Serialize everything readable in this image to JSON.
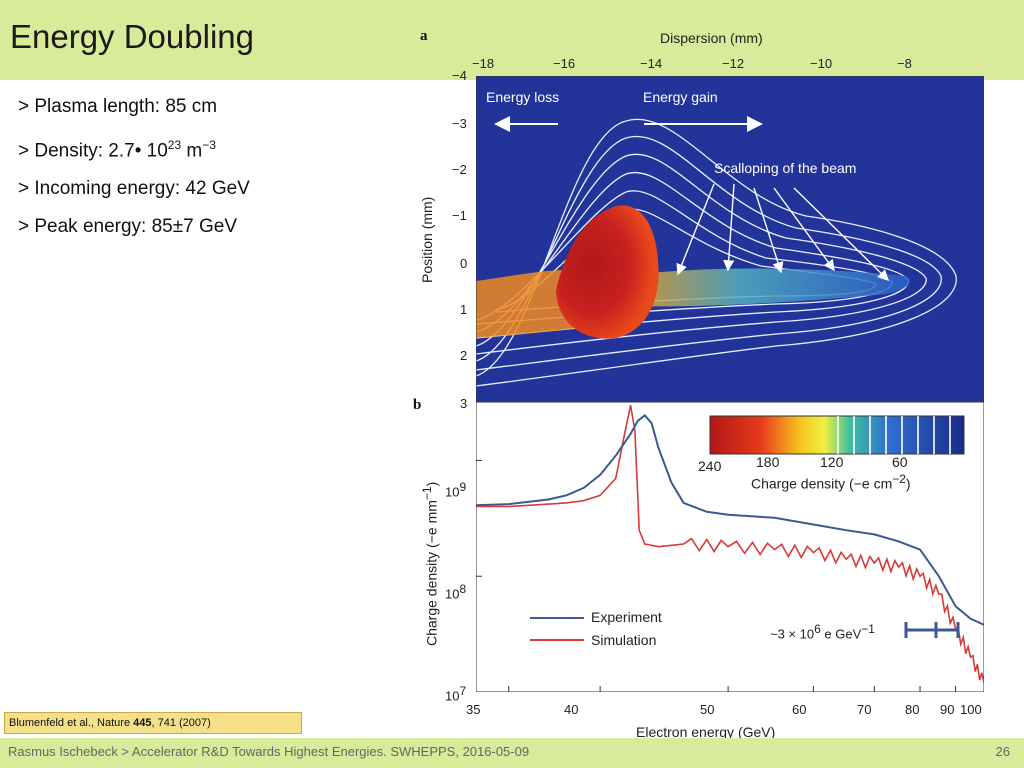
{
  "slide": {
    "title": "Energy Doubling",
    "bullets": {
      "plasma_length": "> Plasma length: 85 cm",
      "density_prefix": "> Density: 2.7• 10",
      "density_exp": "23",
      "density_unit": " m",
      "density_unit_exp": "−3",
      "incoming_energy": "> Incoming energy: 42 GeV",
      "peak_energy": "> Peak energy: 85±7 GeV"
    },
    "citation": {
      "authors": "Blumenfeld et al., Nature ",
      "volume": "445",
      "pages": ", 741 (2007)"
    },
    "footer": "Rasmus Ischebeck > Accelerator R&D Towards Highest Energies. SWHEPPS, 2016-05-09",
    "page_number": "26"
  },
  "colors": {
    "band": "#d9ea9a",
    "experiment": "#3a5a90",
    "simulation": "#d63a3a",
    "image_bg": "#22349a"
  },
  "panel_a": {
    "letter": "a",
    "top_axis_label": "Dispersion (mm)",
    "top_ticks": [
      "−18",
      "−16",
      "−14",
      "−12",
      "−10",
      "−8"
    ],
    "y_label": "Position (mm)",
    "y_ticks": [
      "−4",
      "−3",
      "−2",
      "−1",
      "0",
      "1",
      "2",
      "3"
    ],
    "energy_loss": "Energy loss",
    "energy_gain": "Energy gain",
    "scalloping": "Scalloping of the beam",
    "colorbar_ticks": [
      "240",
      "180",
      "120",
      "60"
    ],
    "colorbar_label": "Charge density (−e cm",
    "colorbar_label_exp": "−2",
    "colorbar_label_end": ")"
  },
  "chart_data": {
    "type": "line",
    "panel": "b",
    "xlabel": "Electron energy (GeV)",
    "ylabel": "Charge density (−e mm",
    "ylabel_exp": "−1",
    "ylabel_end": ")",
    "x_scale": "reciprocal",
    "x_ticks": [
      "35",
      "40",
      "50",
      "60",
      "70",
      "80",
      "90",
      "100"
    ],
    "y_scale": "log",
    "y_ticks": [
      {
        "base": "10",
        "exp": "9"
      },
      {
        "base": "10",
        "exp": "8"
      },
      {
        "base": "10",
        "exp": "7"
      }
    ],
    "legend": [
      "Experiment",
      "Simulation"
    ],
    "legend_position": "bottom-center",
    "annotation": {
      "prefix": "~3 × 10",
      "exp": "6",
      "suffix": " e GeV",
      "suffix_exp": "−1"
    },
    "series": [
      {
        "name": "Experiment",
        "x": [
          33.5,
          35,
          36,
          37,
          38,
          39,
          40,
          41,
          42,
          42.5,
          43,
          43.5,
          44,
          45,
          46,
          48,
          50,
          55,
          60,
          65,
          70,
          75,
          80,
          85,
          90,
          95,
          100
        ],
        "y": [
          410000000.0,
          420000000.0,
          440000000.0,
          460000000.0,
          500000000.0,
          580000000.0,
          750000000.0,
          1100000000.0,
          1700000000.0,
          2200000000.0,
          2450000000.0,
          2100000000.0,
          1300000000.0,
          650000000.0,
          430000000.0,
          360000000.0,
          340000000.0,
          320000000.0,
          280000000.0,
          250000000.0,
          230000000.0,
          200000000.0,
          170000000.0,
          100000000.0,
          55000000.0,
          43000000.0,
          38000000.0
        ]
      },
      {
        "name": "Simulation",
        "x": [
          33.5,
          35,
          36,
          37,
          38,
          39,
          40,
          41,
          41.5,
          42,
          42.3,
          42.6,
          43,
          44,
          46,
          50,
          55,
          60,
          65,
          70,
          75,
          80,
          85,
          90,
          95,
          100
        ],
        "y": [
          400000000.0,
          400000000.0,
          410000000.0,
          420000000.0,
          430000000.0,
          450000000.0,
          500000000.0,
          700000000.0,
          1500000000.0,
          3000000000.0,
          1800000000.0,
          250000000.0,
          190000000.0,
          180000000.0,
          190000000.0,
          180000000.0,
          170000000.0,
          160000000.0,
          140000000.0,
          130000000.0,
          120000000.0,
          100000000.0,
          70000000.0,
          35000000.0,
          20000000.0,
          12000000.0
        ]
      }
    ]
  }
}
